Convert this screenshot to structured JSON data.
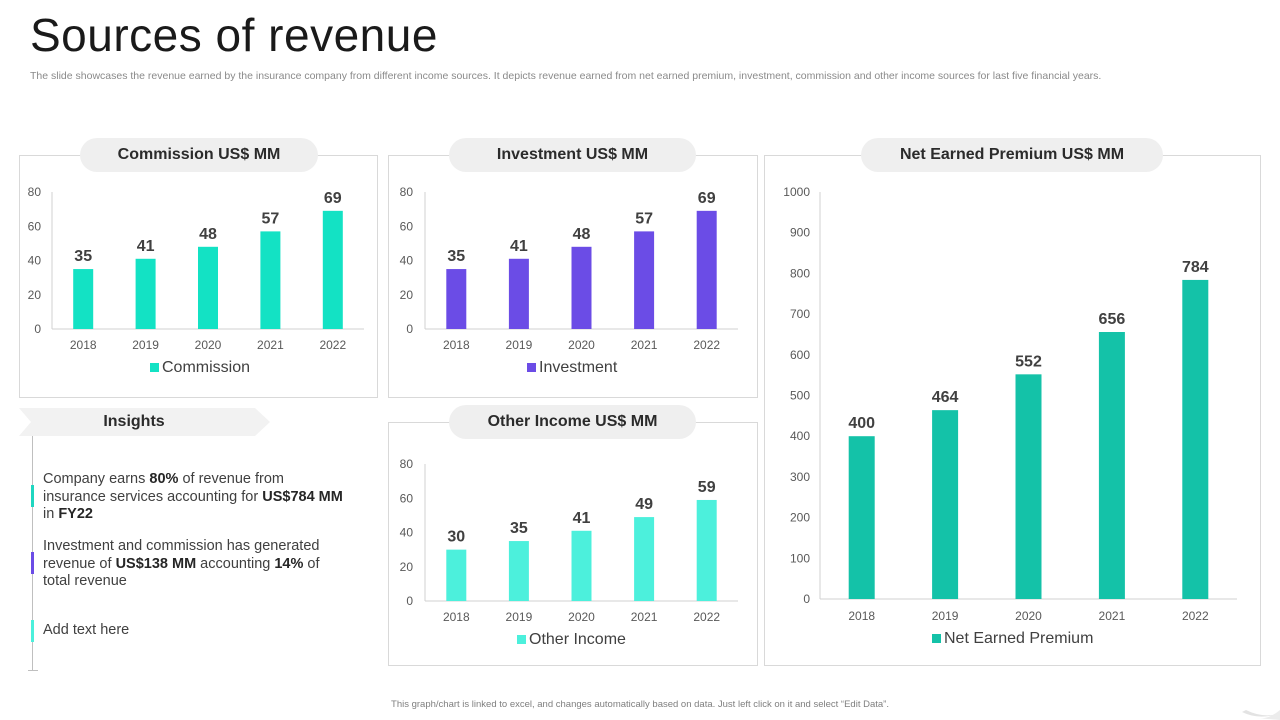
{
  "page": {
    "title": "Sources of revenue",
    "subtitle": "The slide showcases the revenue earned by the insurance company from different income sources. It depicts revenue earned from net earned premium, investment, commission and other income sources for last five financial years.",
    "footer": "This graph/chart is linked to excel, and changes automatically based on data. Just left click on it and select “Edit Data”."
  },
  "insights": {
    "heading": "Insights",
    "items": [
      {
        "color": "#1fd6c0",
        "segments": [
          {
            "text": "Company earns ",
            "bold": false
          },
          {
            "text": "80%",
            "bold": true
          },
          {
            "text": " of revenue from insurance services accounting for ",
            "bold": false
          },
          {
            "text": "US$784 MM",
            "bold": true
          },
          {
            "text": " in ",
            "bold": false
          },
          {
            "text": "FY22",
            "bold": true
          }
        ]
      },
      {
        "color": "#6b4ce6",
        "segments": [
          {
            "text": "Investment and commission has generated revenue of ",
            "bold": false
          },
          {
            "text": "US$138 MM",
            "bold": true
          },
          {
            "text": " accounting ",
            "bold": false
          },
          {
            "text": "14%",
            "bold": true
          },
          {
            "text": " of total revenue",
            "bold": false
          }
        ]
      },
      {
        "color": "#4cf0dc",
        "segments": [
          {
            "text": "Add text here",
            "bold": false
          }
        ]
      }
    ]
  },
  "chart_data": [
    {
      "id": "commission",
      "type": "bar",
      "title": "Commission US$ MM",
      "categories": [
        "2018",
        "2019",
        "2020",
        "2021",
        "2022"
      ],
      "series": [
        {
          "name": "Commission",
          "values": [
            35,
            41,
            48,
            57,
            69
          ],
          "color": "#13e2c4"
        }
      ],
      "ylim": [
        0,
        80
      ],
      "yticks": [
        0,
        20,
        40,
        60,
        80
      ],
      "grid": false,
      "legend": "bottom"
    },
    {
      "id": "investment",
      "type": "bar",
      "title": "Investment US$ MM",
      "categories": [
        "2018",
        "2019",
        "2020",
        "2021",
        "2022"
      ],
      "series": [
        {
          "name": "Investment",
          "values": [
            35,
            41,
            48,
            57,
            69
          ],
          "color": "#6b4ce6"
        }
      ],
      "ylim": [
        0,
        80
      ],
      "yticks": [
        0,
        20,
        40,
        60,
        80
      ],
      "grid": false,
      "legend": "bottom"
    },
    {
      "id": "other",
      "type": "bar",
      "title": "Other Income US$ MM",
      "categories": [
        "2018",
        "2019",
        "2020",
        "2021",
        "2022"
      ],
      "series": [
        {
          "name": "Other Income",
          "values": [
            30,
            35,
            41,
            49,
            59
          ],
          "color": "#4cf0dc"
        }
      ],
      "ylim": [
        0,
        80
      ],
      "yticks": [
        0,
        20,
        40,
        60,
        80
      ],
      "grid": false,
      "legend": "bottom"
    },
    {
      "id": "premium",
      "type": "bar",
      "title": "Net Earned Premium US$ MM",
      "categories": [
        "2018",
        "2019",
        "2020",
        "2021",
        "2022"
      ],
      "series": [
        {
          "name": "Net Earned Premium",
          "values": [
            400,
            464,
            552,
            656,
            784
          ],
          "color": "#14c2a8"
        }
      ],
      "ylim": [
        0,
        1000
      ],
      "yticks": [
        0,
        100,
        200,
        300,
        400,
        500,
        600,
        700,
        800,
        900,
        1000
      ],
      "grid": false,
      "legend": "bottom"
    }
  ]
}
